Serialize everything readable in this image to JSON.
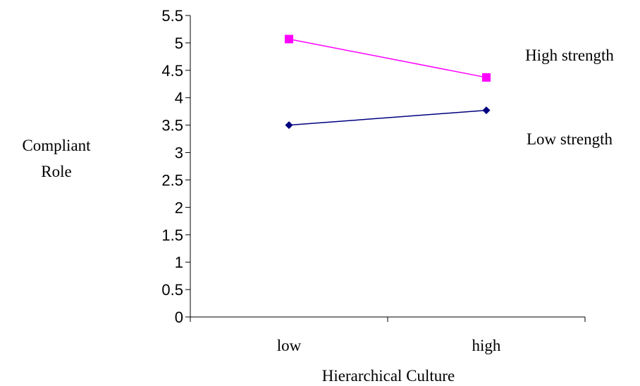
{
  "chart_data": {
    "type": "line",
    "title": "",
    "xlabel": "Hierarchical Culture",
    "ylabel_lines": [
      "Compliant",
      "Role"
    ],
    "categories": [
      "low",
      "high"
    ],
    "ylim": [
      0,
      5.5
    ],
    "yticks": [
      0,
      0.5,
      1,
      1.5,
      2,
      2.5,
      3,
      3.5,
      4,
      4.5,
      5,
      5.5
    ],
    "ytick_labels": [
      "0",
      "0.5",
      "1",
      "1.5",
      "2",
      "2.5",
      "3",
      "3.5",
      "4",
      "4.5",
      "5",
      "5.5"
    ],
    "grid": false,
    "series": [
      {
        "name": "High strength",
        "values": [
          5.07,
          4.37
        ],
        "color": "#ff00ff",
        "marker": "square"
      },
      {
        "name": "Low strength",
        "values": [
          3.5,
          3.77
        ],
        "color": "#000080",
        "marker": "diamond"
      }
    ]
  }
}
